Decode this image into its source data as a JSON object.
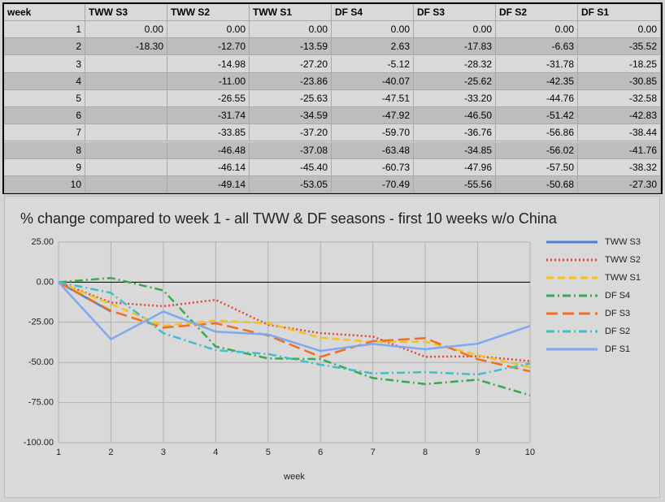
{
  "table": {
    "headers": [
      "week",
      "TWW S3",
      "TWW S2",
      "TWW S1",
      "DF S4",
      "DF S3",
      "DF S2",
      "DF S1"
    ],
    "rows": [
      [
        "1",
        "0.00",
        "0.00",
        "0.00",
        "0.00",
        "0.00",
        "0.00",
        "0.00"
      ],
      [
        "2",
        "-18.30",
        "-12.70",
        "-13.59",
        "2.63",
        "-17.83",
        "-6.63",
        "-35.52"
      ],
      [
        "3",
        null,
        "-14.98",
        "-27.20",
        "-5.12",
        "-28.32",
        "-31.78",
        "-18.25"
      ],
      [
        "4",
        null,
        "-11.00",
        "-23.86",
        "-40.07",
        "-25.62",
        "-42.35",
        "-30.85"
      ],
      [
        "5",
        null,
        "-26.55",
        "-25.63",
        "-47.51",
        "-33.20",
        "-44.76",
        "-32.58"
      ],
      [
        "6",
        null,
        "-31.74",
        "-34.59",
        "-47.92",
        "-46.50",
        "-51.42",
        "-42.83"
      ],
      [
        "7",
        null,
        "-33.85",
        "-37.20",
        "-59.70",
        "-36.76",
        "-56.86",
        "-38.44"
      ],
      [
        "8",
        null,
        "-46.48",
        "-37.08",
        "-63.48",
        "-34.85",
        "-56.02",
        "-41.76"
      ],
      [
        "9",
        null,
        "-46.14",
        "-45.40",
        "-60.73",
        "-47.96",
        "-57.50",
        "-38.32"
      ],
      [
        "10",
        null,
        "-49.14",
        "-53.05",
        "-70.49",
        "-55.56",
        "-50.68",
        "-27.30"
      ]
    ]
  },
  "chart_data": {
    "type": "line",
    "title": "% change compared to week 1 - all TWW & DF seasons - first 10 weeks w/o China",
    "x_label": "week",
    "x": [
      1,
      2,
      3,
      4,
      5,
      6,
      7,
      8,
      9,
      10
    ],
    "xlim": [
      1,
      10
    ],
    "xticks": [
      1,
      2,
      3,
      4,
      5,
      6,
      7,
      8,
      9,
      10
    ],
    "ylim": [
      -100,
      25
    ],
    "yticks": [
      {
        "value": 25,
        "label": "25.00"
      },
      {
        "value": 0,
        "label": "0.00"
      },
      {
        "value": -25,
        "label": "-25.00"
      },
      {
        "value": -50,
        "label": "-50.00"
      },
      {
        "value": -75,
        "label": "-75.00"
      },
      {
        "value": -100,
        "label": "-100.00"
      }
    ],
    "grid": true,
    "legend": "right",
    "series": [
      {
        "name": "TWW S3",
        "color": "#4a7fdd",
        "dash": "solid",
        "values": [
          0,
          -18.3,
          null,
          null,
          null,
          null,
          null,
          null,
          null,
          null
        ]
      },
      {
        "name": "TWW S2",
        "color": "#e8413a",
        "dash": "dotted",
        "values": [
          0,
          -12.7,
          -14.98,
          -11.0,
          -26.55,
          -31.74,
          -33.85,
          -46.48,
          -46.14,
          -49.14
        ]
      },
      {
        "name": "TWW S1",
        "color": "#f5c21a",
        "dash": "dashed",
        "values": [
          0,
          -13.59,
          -27.2,
          -23.86,
          -25.63,
          -34.59,
          -37.2,
          -37.08,
          -45.4,
          -53.05
        ]
      },
      {
        "name": "DF S4",
        "color": "#3aa853",
        "dash": "dashdot",
        "values": [
          0,
          2.63,
          -5.12,
          -40.07,
          -47.51,
          -47.92,
          -59.7,
          -63.48,
          -60.73,
          -70.49
        ]
      },
      {
        "name": "DF S3",
        "color": "#f07020",
        "dash": "longdash",
        "values": [
          0,
          -17.83,
          -28.32,
          -25.62,
          -33.2,
          -46.5,
          -36.76,
          -34.85,
          -47.96,
          -55.56
        ]
      },
      {
        "name": "DF S2",
        "color": "#3fc0c8",
        "dash": "dashdot",
        "values": [
          0,
          -6.63,
          -31.78,
          -42.35,
          -44.76,
          -51.42,
          -56.86,
          -56.02,
          -57.5,
          -50.68
        ]
      },
      {
        "name": "DF S1",
        "color": "#7fa8f0",
        "dash": "solid",
        "values": [
          0,
          -35.52,
          -18.25,
          -30.85,
          -32.58,
          -42.83,
          -38.44,
          -41.76,
          -38.32,
          -27.3
        ]
      }
    ]
  }
}
